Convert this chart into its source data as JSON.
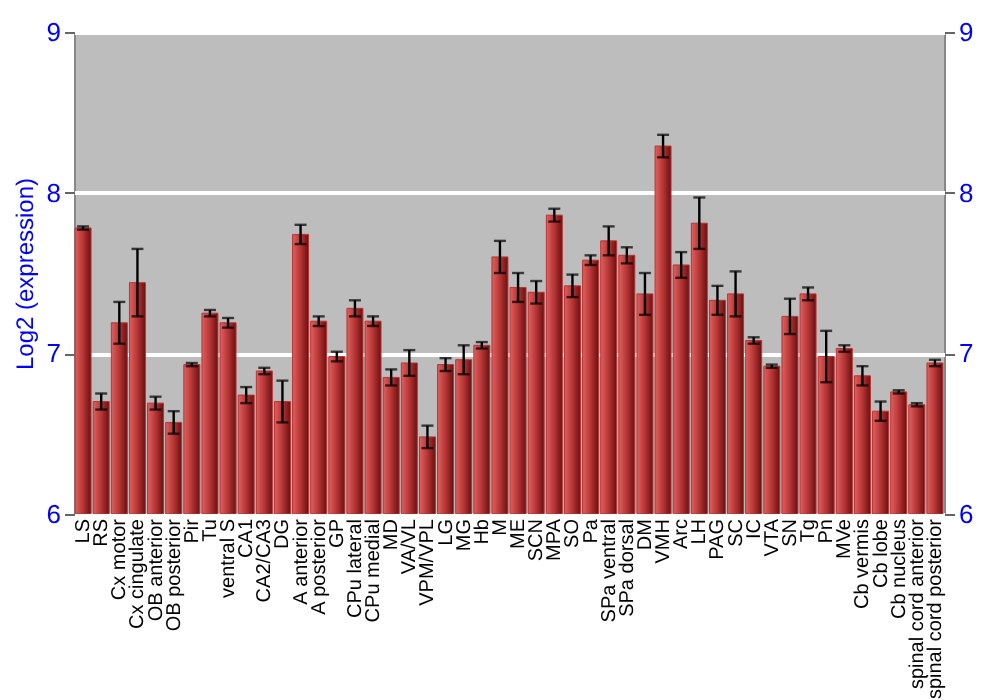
{
  "chart_data": {
    "type": "bar",
    "ylabel": "Log2 (expression)",
    "categories": [
      "LS",
      "RS",
      "Cx motor",
      "Cx cingulate",
      "OB anterior",
      "OB posterior",
      "Pir",
      "Tu",
      "ventral S",
      "CA1",
      "CA2/CA3",
      "DG",
      "A anterior",
      "A posterior",
      "GP",
      "CPu lateral",
      "CPu medial",
      "MD",
      "VA/VL",
      "VPM/VPL",
      "LG",
      "MG",
      "Hb",
      "M",
      "ME",
      "SCN",
      "MPA",
      "SO",
      "Pa",
      "SPa ventral",
      "SPa dorsal",
      "DM",
      "VMH",
      "Arc",
      "LH",
      "PAG",
      "SC",
      "IC",
      "VTA",
      "SN",
      "Tg",
      "Pn",
      "MVe",
      "Cb vermis",
      "Cb lobe",
      "Cb nucleus",
      "spinal cord anterior",
      "spinal cord posterior"
    ],
    "values": [
      7.78,
      6.7,
      7.19,
      7.44,
      6.69,
      6.57,
      6.93,
      7.25,
      7.19,
      6.74,
      6.89,
      6.7,
      7.74,
      7.2,
      6.98,
      7.28,
      7.2,
      6.85,
      6.94,
      6.48,
      6.93,
      6.96,
      7.05,
      7.6,
      7.41,
      7.38,
      7.86,
      7.42,
      7.58,
      7.7,
      7.61,
      7.37,
      8.29,
      7.55,
      7.81,
      7.33,
      7.37,
      7.08,
      6.92,
      7.23,
      7.37,
      6.98,
      7.03,
      6.86,
      6.64,
      6.76,
      6.68,
      6.94
    ],
    "errors": [
      0.01,
      0.05,
      0.13,
      0.21,
      0.04,
      0.07,
      0.01,
      0.02,
      0.03,
      0.05,
      0.02,
      0.13,
      0.06,
      0.03,
      0.03,
      0.05,
      0.03,
      0.05,
      0.08,
      0.07,
      0.04,
      0.09,
      0.02,
      0.1,
      0.09,
      0.07,
      0.04,
      0.07,
      0.03,
      0.09,
      0.05,
      0.13,
      0.07,
      0.08,
      0.16,
      0.09,
      0.14,
      0.02,
      0.01,
      0.11,
      0.04,
      0.16,
      0.02,
      0.06,
      0.06,
      0.01,
      0.01,
      0.02
    ],
    "color": "#b53535",
    "ylim": [
      6,
      9
    ],
    "yticks": [
      6,
      7,
      8,
      9
    ],
    "y2lim": [
      6,
      9
    ],
    "y2ticks": [
      6,
      7,
      8,
      9
    ],
    "grid": "y"
  }
}
